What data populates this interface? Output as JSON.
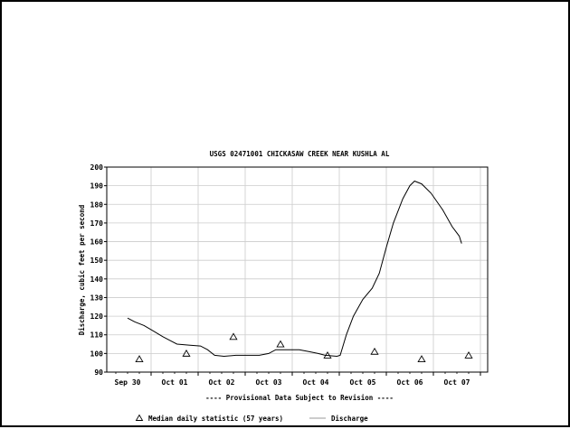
{
  "chart_data": {
    "type": "line",
    "title": "USGS 02471001 CHICKASAW CREEK NEAR KUSHLA AL",
    "ylabel": "Discharge, cubic feet per second",
    "subtitle": "---- Provisional Data Subject to Revision ----",
    "ylim": [
      90,
      200
    ],
    "y_ticks": [
      90,
      100,
      110,
      120,
      130,
      140,
      150,
      160,
      170,
      180,
      190,
      200
    ],
    "x_ticks": [
      "Sep 30",
      "Oct 01",
      "Oct 02",
      "Oct 03",
      "Oct 04",
      "Oct 05",
      "Oct 06",
      "Oct 07"
    ],
    "grid": true,
    "legend": [
      {
        "symbol": "triangle",
        "label": "Median daily statistic (57 years)"
      },
      {
        "symbol": "line",
        "label": "Discharge"
      }
    ],
    "discharge": [
      [
        0.0,
        119
      ],
      [
        0.15,
        117
      ],
      [
        0.35,
        115
      ],
      [
        0.55,
        112
      ],
      [
        0.75,
        109
      ],
      [
        0.9,
        107
      ],
      [
        1.05,
        105
      ],
      [
        1.3,
        104.5
      ],
      [
        1.55,
        104
      ],
      [
        1.7,
        102
      ],
      [
        1.85,
        99
      ],
      [
        2.05,
        98.5
      ],
      [
        2.3,
        99
      ],
      [
        2.55,
        99
      ],
      [
        2.8,
        99
      ],
      [
        3.0,
        100
      ],
      [
        3.15,
        102
      ],
      [
        3.4,
        102
      ],
      [
        3.65,
        102
      ],
      [
        3.85,
        101
      ],
      [
        4.05,
        100
      ],
      [
        4.2,
        99
      ],
      [
        4.45,
        98.5
      ],
      [
        4.52,
        99
      ],
      [
        4.65,
        110
      ],
      [
        4.8,
        120
      ],
      [
        5.0,
        129
      ],
      [
        5.2,
        135
      ],
      [
        5.35,
        143
      ],
      [
        5.5,
        157
      ],
      [
        5.65,
        170
      ],
      [
        5.85,
        183
      ],
      [
        6.0,
        190
      ],
      [
        6.1,
        192.5
      ],
      [
        6.25,
        191
      ],
      [
        6.45,
        186
      ],
      [
        6.7,
        177
      ],
      [
        6.9,
        168
      ],
      [
        7.05,
        163
      ],
      [
        7.1,
        159
      ]
    ],
    "median_daily": [
      [
        0.25,
        97
      ],
      [
        1.25,
        100
      ],
      [
        2.25,
        109
      ],
      [
        3.25,
        105
      ],
      [
        4.25,
        99
      ],
      [
        5.25,
        101
      ],
      [
        6.25,
        97
      ],
      [
        7.25,
        99
      ]
    ],
    "colors": {
      "line": "#000000",
      "grid": "#cccccc",
      "marker": "#000000"
    }
  }
}
